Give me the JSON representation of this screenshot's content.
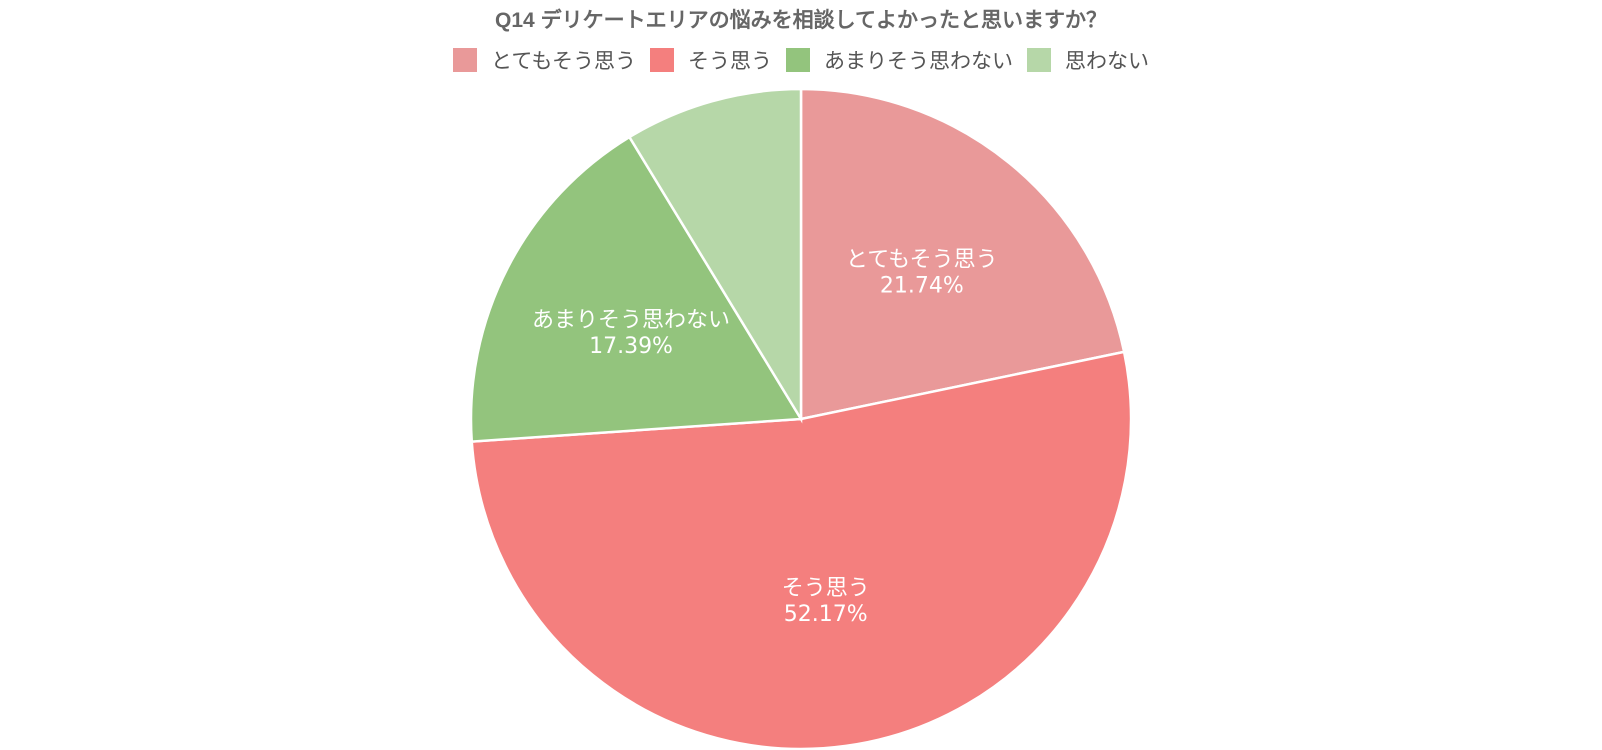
{
  "chart_data": {
    "type": "pie",
    "title": "Q14 デリケートエリアの悩みを相談してよかったと思いますか？",
    "categories": [
      "とてもそう思う",
      "そう思う",
      "あまりそう思わない",
      "思わない"
    ],
    "values": [
      21.74,
      52.17,
      17.39,
      8.7
    ],
    "data_labels": [
      "21.74%",
      "52.17%",
      "17.39%",
      ""
    ],
    "colors": [
      "#E99999",
      "#F47F7E",
      "#93C47D",
      "#B6D7A8"
    ],
    "legend_position": "top",
    "start_angle_deg": 0,
    "direction": "clockwise"
  }
}
